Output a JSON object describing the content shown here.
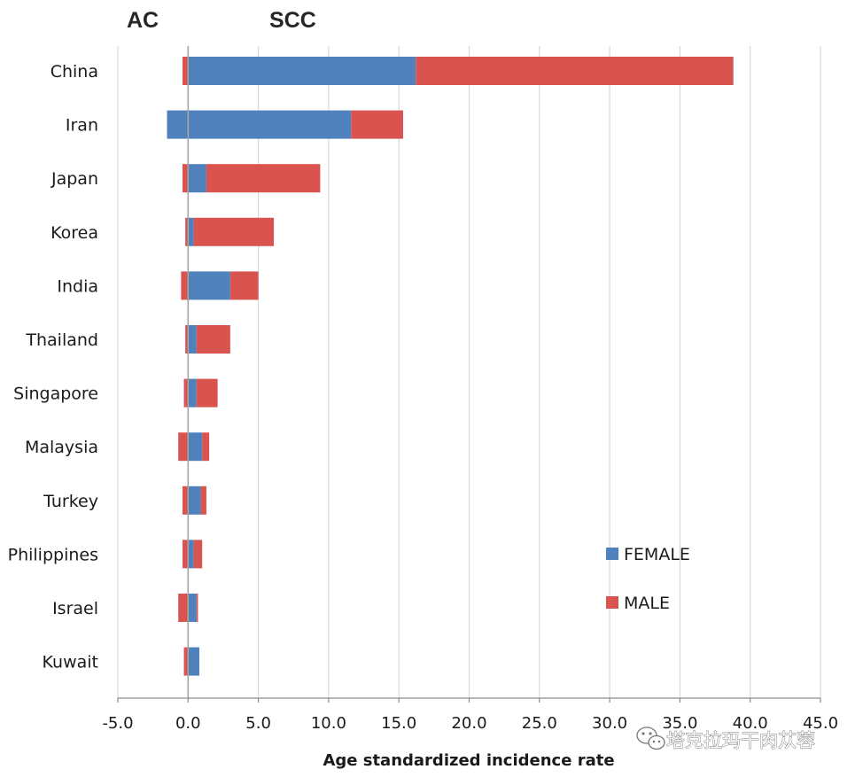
{
  "chart_data": {
    "type": "bar",
    "orientation": "horizontal",
    "stacked": true,
    "side_labels": {
      "left": "AC",
      "right": "SCC"
    },
    "xlabel": "Age standardized incidence rate",
    "ylabel": "",
    "xlim": [
      -5.0,
      45.0
    ],
    "xticks": [
      "-5.0",
      "0.0",
      "5.0",
      "10.0",
      "15.0",
      "20.0",
      "25.0",
      "30.0",
      "35.0",
      "40.0",
      "45.0"
    ],
    "grid": true,
    "legend_position": "right",
    "categories": [
      "China",
      "Iran",
      "Japan",
      "Korea",
      "India",
      "Thailand",
      "Singapore",
      "Malaysia",
      "Turkey",
      "Philippines",
      "Israel",
      "Kuwait"
    ],
    "series": [
      {
        "name": "FEMALE",
        "color": "#4f81bd",
        "values": [
          16.2,
          11.6,
          1.3,
          0.4,
          3.0,
          0.6,
          0.6,
          1.0,
          0.9,
          0.4,
          0.6,
          0.8
        ],
        "negative_values": [
          0.0,
          -1.5,
          0.0,
          0.0,
          0.0,
          0.0,
          0.0,
          0.0,
          0.0,
          0.0,
          0.0,
          0.0
        ]
      },
      {
        "name": "MALE",
        "color": "#d9534f",
        "values": [
          22.6,
          3.7,
          8.1,
          5.7,
          2.0,
          2.4,
          1.5,
          0.5,
          0.4,
          0.6,
          0.1,
          0.0
        ],
        "negative_values": [
          -0.4,
          0.0,
          -0.4,
          -0.2,
          -0.5,
          -0.2,
          -0.3,
          -0.7,
          -0.4,
          -0.4,
          -0.7,
          -0.3
        ]
      }
    ]
  },
  "watermark": "塔克拉玛干肉苁蓉"
}
